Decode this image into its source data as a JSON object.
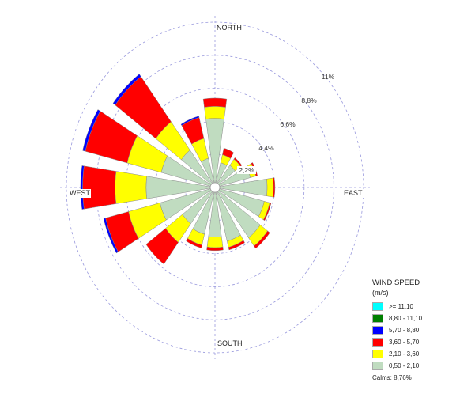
{
  "chart_data": {
    "type": "wind-rose",
    "directions": [
      "N",
      "NNE",
      "NE",
      "ENE",
      "E",
      "ESE",
      "SE",
      "SSE",
      "S",
      "SSW",
      "SW",
      "WSW",
      "W",
      "WNW",
      "NW",
      "NNW"
    ],
    "cardinal_labels": {
      "north": "NORTH",
      "east": "EAST",
      "south": "SOUTH",
      "west": "WEST"
    },
    "radial_ticks": [
      "2,2%",
      "4,4%",
      "6,6%",
      "8,8%",
      "11%"
    ],
    "radial_values": [
      2.2,
      4.4,
      6.6,
      8.8,
      11
    ],
    "rmax": 11,
    "grid": true,
    "legend_position": "bottom-right",
    "legend_title": "WIND SPEED",
    "legend_unit": "(m/s)",
    "bins": [
      {
        "label": "0,50 - 2,10",
        "color": "#c0dcc0"
      },
      {
        "label": "2,10 - 3,60",
        "color": "#ffff00"
      },
      {
        "label": "3,60 - 5,70",
        "color": "#ff0000"
      },
      {
        "label": "5,70 - 8,80",
        "color": "#0000ff"
      },
      {
        "label": "8,80 - 11,10",
        "color": "#008000"
      },
      {
        "label": ">= 11,10",
        "color": "#00ffff"
      }
    ],
    "cumulative_percent": [
      [
        4.6,
        5.4,
        5.95,
        5.95,
        5.95,
        5.95
      ],
      [
        1.7,
        2.25,
        2.7,
        2.7,
        2.7,
        2.7
      ],
      [
        1.85,
        2.35,
        2.47,
        2.47,
        2.47,
        2.47
      ],
      [
        2.7,
        3.12,
        3.24,
        3.24,
        3.24,
        3.24
      ],
      [
        3.86,
        4.33,
        4.44,
        4.44,
        4.44,
        4.44
      ],
      [
        3.76,
        4.18,
        4.28,
        4.28,
        4.28,
        4.28
      ],
      [
        4.17,
        4.85,
        5.05,
        5.05,
        5.05,
        5.05
      ],
      [
        3.68,
        4.1,
        4.28,
        4.28,
        4.28,
        4.28
      ],
      [
        3.3,
        4.0,
        4.2,
        4.2,
        4.2,
        4.2
      ],
      [
        3.2,
        3.95,
        4.15,
        4.15,
        4.15,
        4.15
      ],
      [
        3.0,
        4.55,
        6.35,
        6.35,
        6.35,
        6.35
      ],
      [
        4.2,
        6.6,
        8.35,
        8.5,
        8.5,
        8.5
      ],
      [
        5.1,
        7.4,
        9.8,
        9.95,
        9.95,
        9.95
      ],
      [
        4.1,
        6.7,
        9.9,
        10.1,
        10.1,
        10.1
      ],
      [
        3.1,
        5.45,
        9.2,
        9.4,
        9.4,
        9.4
      ],
      [
        2.0,
        3.36,
        4.8,
        4.9,
        4.9,
        4.9
      ]
    ],
    "calms": "Calms: 8,76%",
    "grid_color": "#9999dd"
  }
}
